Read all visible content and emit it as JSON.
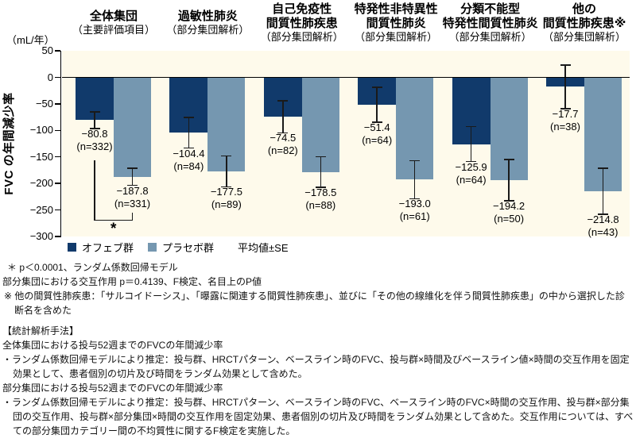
{
  "chart": {
    "unit_label": "（mL/年）",
    "axis_title": "FVC の年間減少率"
  },
  "legend": {
    "ofev": "オフェブ群",
    "placebo": "プラセボ群",
    "note": "平均値±SE"
  },
  "colors": {
    "ofev": "#113A6B",
    "placebo": "#7597B0",
    "panel_bg": "#FEFAEB",
    "line": "#1A1A1A"
  },
  "chart_data": {
    "type": "bar",
    "title": "投与52週までのFVCの年間減少率（全体集団および部分集団）",
    "ylabel": "FVC の年間減少率（mL/年）",
    "ylim": [
      -300,
      50
    ],
    "y_ticks": [
      50,
      0,
      -50,
      -100,
      -150,
      -200,
      -250,
      -300
    ],
    "grid": false,
    "legend_position": "bottom",
    "series_names": [
      "オフェブ群",
      "プラセボ群"
    ],
    "error_note": "平均値±SE",
    "groups": [
      {
        "title_lines": [
          "全体集団"
        ],
        "subtitle": "（主要評価項目）",
        "bars": [
          {
            "series": "オフェブ群",
            "value": -80.8,
            "se": 16,
            "n": 332,
            "value_label": "−80.8",
            "n_label": "(n=332)"
          },
          {
            "series": "プラセボ群",
            "value": -187.8,
            "se": 16,
            "n": 331,
            "value_label": "−187.8",
            "n_label": "(n=331)"
          }
        ]
      },
      {
        "title_lines": [
          "過敏性肺炎"
        ],
        "subtitle": "（部分集団解析）",
        "bars": [
          {
            "series": "オフェブ群",
            "value": -104.4,
            "se": 29,
            "n": 84,
            "value_label": "−104.4",
            "n_label": "(n=84)"
          },
          {
            "series": "プラセボ群",
            "value": -177.5,
            "se": 29,
            "n": 89,
            "value_label": "−177.5",
            "n_label": "(n=89)"
          }
        ]
      },
      {
        "title_lines": [
          "自己免疫性",
          "間質性肺疾患"
        ],
        "subtitle": "（部分集団解析）",
        "bars": [
          {
            "series": "オフェブ群",
            "value": -74.5,
            "se": 30,
            "n": 82,
            "value_label": "−74.5",
            "n_label": "(n=82)"
          },
          {
            "series": "プラセボ群",
            "value": -178.5,
            "se": 29,
            "n": 88,
            "value_label": "−178.5",
            "n_label": "(n=88)"
          }
        ]
      },
      {
        "title_lines": [
          "特発性非特異性",
          "間質性肺炎"
        ],
        "subtitle": "（部分集団解析）",
        "bars": [
          {
            "series": "オフェブ群",
            "value": -51.4,
            "se": 33,
            "n": 64,
            "value_label": "−51.4",
            "n_label": "(n=64)"
          },
          {
            "series": "プラセボ群",
            "value": -193.0,
            "se": 36,
            "n": 61,
            "value_label": "−193.0",
            "n_label": "(n=61)"
          }
        ]
      },
      {
        "title_lines": [
          "分類不能型",
          "特発性間質性肺炎"
        ],
        "subtitle": "（部分集団解析）",
        "bars": [
          {
            "series": "オフェブ群",
            "value": -125.9,
            "se": 33,
            "n": 64,
            "value_label": "−125.9",
            "n_label": "(n=64)"
          },
          {
            "series": "プラセボ群",
            "value": -194.2,
            "se": 39,
            "n": 50,
            "value_label": "−194.2",
            "n_label": "(n=50)"
          }
        ]
      },
      {
        "title_lines": [
          "他の",
          "間質性肺疾患※"
        ],
        "subtitle": "（部分集団解析）",
        "bars": [
          {
            "series": "オフェブ群",
            "value": -17.7,
            "se": 41,
            "n": 38,
            "value_label": "−17.7",
            "n_label": "(n=38)"
          },
          {
            "series": "プラセボ群",
            "value": -214.8,
            "se": 43,
            "n": 43,
            "value_label": "−214.8",
            "n_label": "(n=43)"
          }
        ]
      }
    ],
    "significance": {
      "symbol": "*",
      "group": "全体集団",
      "meaning": "＊ p＜0.0001、ランダム係数回帰モデル"
    }
  },
  "footnotes": [
    {
      "text": "＊ p＜0.0001、ランダム係数回帰モデル"
    },
    {
      "text": "部分集団における交互作用 p＝0.4139、F検定、名目上のP値"
    },
    {
      "text": "※ 他の間質性肺疾患：「サルコイドーシス」、「曝露に関連する間質性肺疾患」、並びに「その他の線維化を伴う間質性肺疾患」の中から選択した診断名を含めた"
    }
  ],
  "methods": {
    "heading": "【統計解析手法】",
    "sections": [
      {
        "title": "全体集団における投与52週までのFVCの年間減少率",
        "bullet": "・ランダム係数回帰モデルにより推定：投与群、HRCTパターン、ベースライン時のFVC、投与群×時間及びベースライン値×時間の交互作用を固定効果として、患者個別の切片及び時間をランダム効果として含めた。"
      },
      {
        "title": "部分集団における投与52週までのFVCの年間減少率",
        "bullet": "・ランダム係数回帰モデルにより推定：投与群、HRCTパターン、ベースライン時のFVC、ベースライン時のFVC×時間の交互作用、投与群×部分集団の交互作用、投与群×部分集団×時間の交互作用を固定効果、患者個別の切片及び時間をランダム効果として含めた。交互作用については、すべての部分集団カテゴリー間の不均質性に関するF検定を実施した。"
      }
    ]
  }
}
